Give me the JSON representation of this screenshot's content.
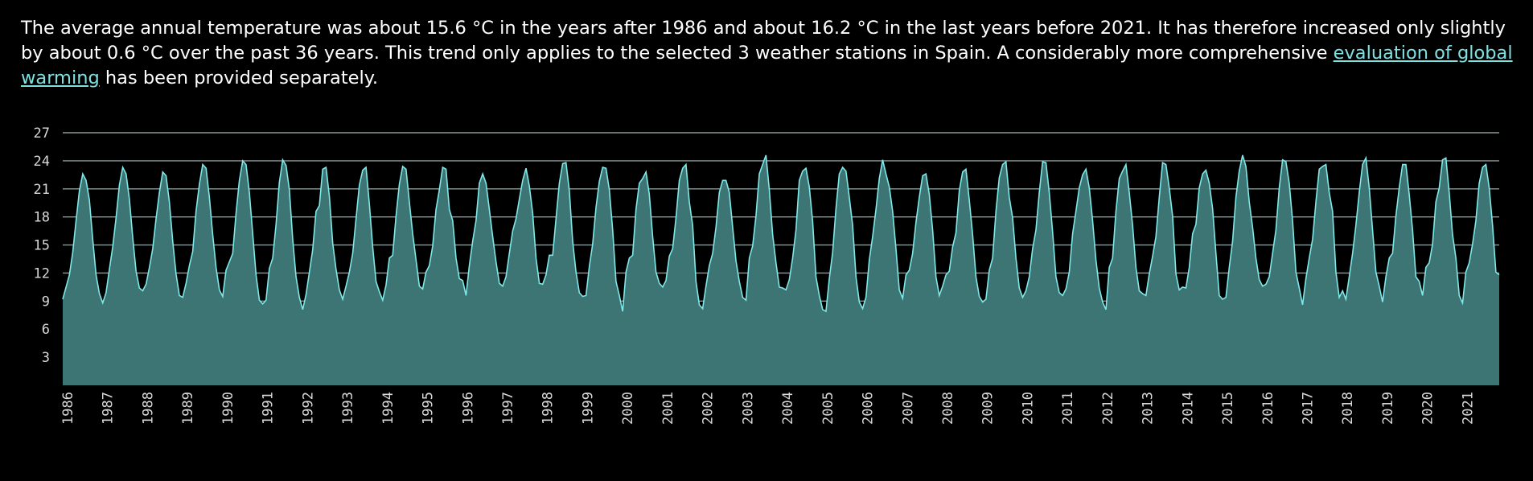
{
  "text": {
    "part1": "The average annual temperature was about 15.6 °C in the years after 1986 and about 16.2 °C in the last years before 2021. It has therefore increased only slightly by about 0.6 °C over the past 36 years. This trend only applies to the selected 3 weather stations in Spain. A considerably more comprehensive ",
    "link": "evaluation of global warming",
    "part2": " has been provided separately."
  },
  "colors": {
    "background": "#000000",
    "text": "#ffffff",
    "link": "#7fe0e0",
    "area_fill": "#3d7474",
    "line": "#7fe8e8",
    "grid": "#8a9a9a"
  },
  "chart_data": {
    "type": "area",
    "title": "",
    "xlabel": "",
    "ylabel": "",
    "unit": "°C",
    "ylim": [
      0,
      27
    ],
    "y_ticks": [
      3,
      6,
      9,
      12,
      15,
      18,
      21,
      24,
      27
    ],
    "x_ticks": [
      "1986",
      "1987",
      "1988",
      "1989",
      "1990",
      "1991",
      "1992",
      "1993",
      "1994",
      "1995",
      "1996",
      "1997",
      "1998",
      "1999",
      "2000",
      "2001",
      "2002",
      "2003",
      "2004",
      "2005",
      "2006",
      "2007",
      "2008",
      "2009",
      "2010",
      "2011",
      "2012",
      "2013",
      "2014",
      "2015",
      "2016",
      "2017",
      "2018",
      "2019",
      "2020",
      "2021"
    ],
    "grid": true,
    "series": [
      {
        "granularity": "monthly (Jan–Dec per year)",
        "years": [
          "1986",
          "1987",
          "1988",
          "1989",
          "1990",
          "1991",
          "1992",
          "1993",
          "1994",
          "1995",
          "1996",
          "1997",
          "1998",
          "1999",
          "2000",
          "2001",
          "2002",
          "2003",
          "2004",
          "2005",
          "2006",
          "2007",
          "2008",
          "2009",
          "2010",
          "2011",
          "2012",
          "2013",
          "2014",
          "2015",
          "2016",
          "2017",
          "2018",
          "2019",
          "2020",
          "2021"
        ],
        "values": [
          [
            9.2,
            10.5,
            11.8,
            14.2,
            17.6,
            20.8,
            22.6,
            21.9,
            19.8,
            15.6,
            11.8,
            9.8
          ],
          [
            8.8,
            9.9,
            12.4,
            14.8,
            17.9,
            21.4,
            23.3,
            22.6,
            19.9,
            15.8,
            12.2,
            10.4
          ],
          [
            10.1,
            10.8,
            12.6,
            14.6,
            17.8,
            20.6,
            22.8,
            22.4,
            19.6,
            15.4,
            11.9,
            9.6
          ],
          [
            9.4,
            10.9,
            12.8,
            14.3,
            18.6,
            21.5,
            23.6,
            23.2,
            20.1,
            16.1,
            12.6,
            10.2
          ],
          [
            9.5,
            12.3,
            13.2,
            14.1,
            18.4,
            21.9,
            24.0,
            23.6,
            20.6,
            16.2,
            11.8,
            9.1
          ],
          [
            8.7,
            9.1,
            12.5,
            13.6,
            17.2,
            21.7,
            24.1,
            23.5,
            20.9,
            15.6,
            11.6,
            9.4
          ],
          [
            8.1,
            9.7,
            12.1,
            14.5,
            18.6,
            19.2,
            23.1,
            23.3,
            20.2,
            15.2,
            12.4,
            10.2
          ],
          [
            9.2,
            10.6,
            12.1,
            14.1,
            17.8,
            21.4,
            23.0,
            23.3,
            19.4,
            14.8,
            11.1,
            10.0
          ],
          [
            9.1,
            10.7,
            13.6,
            13.9,
            18.1,
            21.5,
            23.4,
            23.1,
            19.6,
            16.2,
            13.4,
            10.6
          ],
          [
            10.3,
            12.1,
            12.8,
            14.9,
            18.8,
            20.9,
            23.3,
            23.1,
            18.8,
            17.6,
            13.6,
            11.4
          ],
          [
            11.2,
            9.6,
            12.8,
            15.4,
            17.6,
            21.6,
            22.6,
            21.6,
            18.8,
            15.9,
            13.2,
            10.9
          ],
          [
            10.6,
            11.6,
            14.1,
            16.5,
            17.8,
            19.9,
            21.9,
            23.2,
            21.3,
            18.4,
            13.6,
            10.9
          ],
          [
            10.8,
            11.8,
            13.9,
            13.9,
            17.8,
            21.6,
            23.7,
            23.8,
            20.8,
            15.4,
            12.1,
            9.9
          ],
          [
            9.5,
            9.6,
            12.7,
            15.1,
            19.0,
            21.8,
            23.3,
            23.2,
            20.9,
            16.6,
            11.1,
            9.6
          ],
          [
            7.9,
            12.1,
            13.6,
            13.9,
            18.8,
            21.6,
            22.1,
            22.8,
            20.4,
            15.9,
            12.1,
            10.9
          ],
          [
            10.5,
            11.2,
            13.8,
            14.6,
            17.9,
            21.9,
            23.2,
            23.6,
            19.6,
            17.1,
            11.1,
            8.6
          ],
          [
            8.2,
            10.6,
            12.8,
            14.1,
            16.9,
            20.6,
            21.9,
            21.9,
            20.6,
            16.9,
            13.3,
            11.1
          ],
          [
            9.4,
            9.1,
            13.6,
            14.9,
            18.1,
            22.6,
            23.6,
            24.6,
            20.9,
            16.1,
            13.1,
            10.5
          ],
          [
            10.4,
            10.2,
            11.3,
            13.6,
            16.6,
            21.9,
            22.9,
            23.2,
            21.2,
            17.5,
            11.6,
            9.6
          ],
          [
            8.1,
            7.9,
            11.4,
            14.2,
            18.9,
            22.6,
            23.3,
            22.9,
            20.1,
            17.1,
            11.6,
            8.9
          ],
          [
            8.2,
            9.4,
            13.4,
            15.9,
            18.8,
            22.1,
            24.1,
            22.6,
            21.2,
            18.6,
            14.6,
            10.2
          ],
          [
            9.3,
            11.8,
            12.3,
            14.1,
            17.4,
            20.1,
            22.4,
            22.6,
            20.4,
            16.6,
            11.6,
            9.6
          ],
          [
            10.6,
            11.8,
            12.2,
            14.8,
            16.3,
            20.8,
            22.8,
            23.1,
            19.8,
            16.1,
            11.6,
            9.5
          ],
          [
            8.9,
            9.2,
            12.3,
            13.6,
            18.6,
            22.2,
            23.6,
            23.9,
            20.1,
            17.9,
            13.6,
            10.4
          ],
          [
            9.4,
            10.1,
            11.6,
            14.6,
            16.6,
            20.6,
            23.9,
            23.8,
            20.6,
            16.4,
            11.6,
            9.9
          ],
          [
            9.6,
            10.3,
            12.1,
            16.2,
            18.6,
            21.1,
            22.5,
            23.1,
            21.1,
            17.6,
            13.4,
            10.4
          ],
          [
            8.9,
            8.1,
            12.6,
            13.6,
            18.6,
            22.1,
            22.9,
            23.6,
            20.6,
            17.1,
            12.6,
            10.1
          ],
          [
            9.8,
            9.6,
            11.9,
            13.8,
            15.9,
            20.1,
            23.8,
            23.6,
            21.1,
            18.1,
            11.9,
            10.2
          ],
          [
            10.5,
            10.4,
            12.6,
            16.2,
            17.2,
            21.1,
            22.6,
            23.0,
            21.6,
            18.9,
            14.1,
            9.6
          ],
          [
            9.2,
            9.4,
            12.6,
            15.4,
            20.1,
            22.9,
            24.6,
            23.4,
            19.6,
            16.9,
            13.6,
            11.3
          ],
          [
            10.6,
            10.8,
            11.6,
            14.1,
            16.6,
            21.1,
            24.1,
            23.9,
            21.6,
            17.6,
            12.1,
            10.4
          ],
          [
            8.6,
            11.4,
            13.6,
            15.6,
            19.6,
            23.1,
            23.4,
            23.6,
            20.6,
            18.6,
            12.1,
            9.4
          ],
          [
            10.1,
            9.2,
            11.6,
            14.1,
            17.1,
            20.6,
            23.6,
            24.3,
            21.1,
            16.6,
            12.1,
            10.6
          ],
          [
            8.9,
            11.6,
            13.6,
            14.1,
            18.1,
            21.1,
            23.6,
            23.6,
            20.4,
            16.6,
            11.6,
            11.1
          ],
          [
            9.6,
            12.6,
            13.1,
            15.1,
            19.6,
            21.1,
            24.1,
            24.3,
            20.6,
            16.1,
            13.6,
            9.6
          ],
          [
            8.8,
            12.1,
            13.1,
            15.1,
            17.6,
            21.6,
            23.3,
            23.6,
            21.1,
            17.1,
            12.1,
            11.8
          ]
        ]
      }
    ]
  }
}
